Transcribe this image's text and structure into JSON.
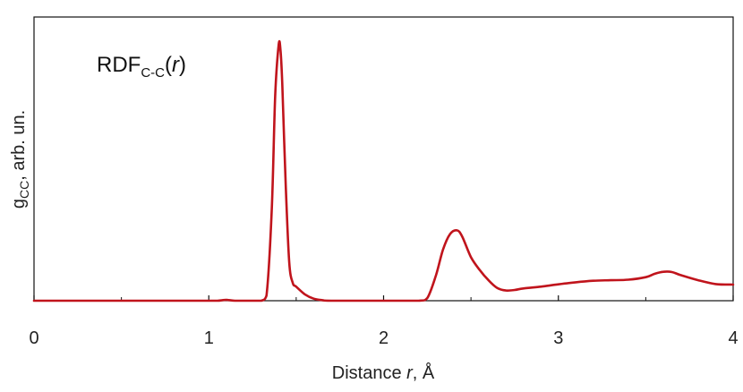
{
  "chart_data": {
    "type": "line",
    "annotation": {
      "main": "RDF",
      "subscript": "C-C",
      "paren_open": "(",
      "var": "r",
      "paren_close": ")"
    },
    "xlabel": {
      "text": "Distance ",
      "var": "r",
      "unit": ", Å"
    },
    "ylabel": {
      "main": "g",
      "subscript": "CC",
      "rest": ", arb. un."
    },
    "xlim": [
      0,
      4
    ],
    "ylim": [
      0,
      1
    ],
    "xticks": [
      0,
      1,
      2,
      3,
      4
    ],
    "xtick_labels": [
      "0",
      "1",
      "2",
      "3",
      "4"
    ],
    "grid": false,
    "line_color": "#c0141c",
    "series": [
      {
        "x": [
          0.0,
          0.5,
          1.0,
          1.05,
          1.1,
          1.15,
          1.25,
          1.3,
          1.33,
          1.36,
          1.38,
          1.4,
          1.41,
          1.42,
          1.44,
          1.46,
          1.48,
          1.5,
          1.55,
          1.6,
          1.65,
          1.7,
          2.0,
          2.2,
          2.25,
          2.3,
          2.34,
          2.38,
          2.42,
          2.45,
          2.5,
          2.55,
          2.6,
          2.65,
          2.7,
          2.75,
          2.8,
          2.9,
          3.0,
          3.1,
          3.2,
          3.3,
          3.4,
          3.5,
          3.55,
          3.6,
          3.65,
          3.7,
          3.8,
          3.9,
          4.0
        ],
        "y": [
          0.0,
          0.0,
          0.0,
          0.0,
          0.003,
          0.0,
          0.0,
          0.0,
          0.02,
          0.35,
          0.8,
          1.0,
          0.98,
          0.85,
          0.45,
          0.15,
          0.07,
          0.055,
          0.025,
          0.008,
          0.002,
          0.0,
          0.0,
          0.0,
          0.01,
          0.1,
          0.2,
          0.26,
          0.275,
          0.25,
          0.17,
          0.12,
          0.08,
          0.05,
          0.04,
          0.042,
          0.048,
          0.055,
          0.064,
          0.072,
          0.078,
          0.08,
          0.082,
          0.092,
          0.105,
          0.113,
          0.112,
          0.1,
          0.08,
          0.065,
          0.063
        ]
      }
    ]
  }
}
